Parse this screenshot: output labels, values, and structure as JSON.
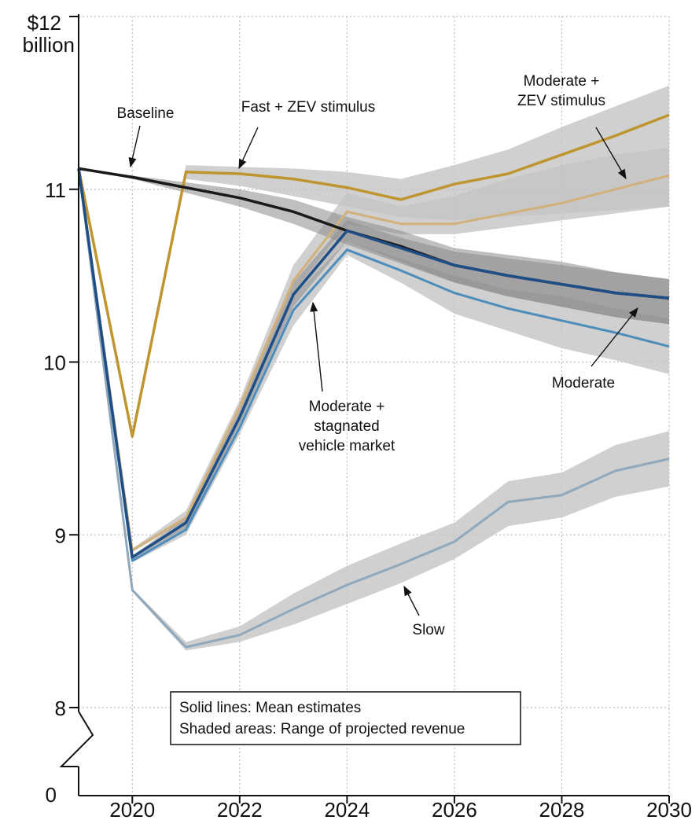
{
  "chart_data": {
    "type": "line",
    "ylabel_top": "$12",
    "ylabel_unit": "billion",
    "x": [
      2019,
      2020,
      2021,
      2022,
      2023,
      2024,
      2025,
      2026,
      2027,
      2028,
      2029,
      2030
    ],
    "xlim": [
      2019,
      2030
    ],
    "xticks": [
      "2020",
      "2022",
      "2024",
      "2026",
      "2028",
      "2030"
    ],
    "ylim": [
      8,
      12
    ],
    "yticks": [
      "8",
      "9",
      "10",
      "11",
      "$12"
    ],
    "axis_break_label": "0",
    "grid": true,
    "colors": {
      "baseline": "#1a1a1a",
      "fast_zev": "#bf9530",
      "moderate_zev": "#d9bc85",
      "moderate": "#1f4e87",
      "moderate_stagnated": "#d1b07a",
      "moderate_light": "#4d8dbb",
      "slow": "#8fa8bb",
      "band": "#c4c4c4",
      "band_dark": "#8a8a8a"
    },
    "series": [
      {
        "key": "slow",
        "values": [
          11.12,
          8.68,
          8.35,
          8.42,
          8.57,
          8.71,
          8.83,
          8.96,
          9.19,
          9.23,
          9.37,
          9.44
        ],
        "band_low": [
          11.12,
          8.67,
          8.33,
          8.38,
          8.48,
          8.6,
          8.72,
          8.86,
          9.05,
          9.1,
          9.22,
          9.28
        ],
        "band_high": [
          11.12,
          8.69,
          8.38,
          8.47,
          8.66,
          8.82,
          8.95,
          9.07,
          9.31,
          9.36,
          9.52,
          9.6
        ]
      },
      {
        "key": "moderate_light",
        "values": [
          11.12,
          8.85,
          9.03,
          9.62,
          10.3,
          10.65,
          10.53,
          10.4,
          10.31,
          10.24,
          10.17,
          10.09
        ],
        "band_low": [
          11.12,
          8.84,
          9.0,
          9.58,
          10.21,
          10.62,
          10.46,
          10.28,
          10.18,
          10.08,
          10.01,
          9.93
        ],
        "band_high": [
          11.12,
          8.86,
          9.06,
          9.66,
          10.38,
          10.7,
          10.6,
          10.5,
          10.42,
          10.38,
          10.31,
          10.25
        ]
      },
      {
        "key": "moderate_stagnated",
        "values": [
          11.12,
          8.91,
          9.1,
          9.74,
          10.47,
          10.87,
          10.8,
          10.8,
          10.86,
          10.92,
          11.0,
          11.08
        ],
        "band_low": [
          11.12,
          8.9,
          9.08,
          9.7,
          10.4,
          10.8,
          10.74,
          10.74,
          10.78,
          10.82,
          10.86,
          10.9
        ],
        "band_high": [
          11.12,
          8.92,
          9.14,
          9.78,
          10.56,
          10.98,
          10.9,
          10.96,
          11.06,
          11.14,
          11.2,
          11.24
        ]
      },
      {
        "key": "moderate",
        "values": [
          11.12,
          8.87,
          9.07,
          9.68,
          10.39,
          10.76,
          10.66,
          10.56,
          10.5,
          10.45,
          10.4,
          10.37
        ],
        "band_low": [
          11.12,
          8.86,
          9.04,
          9.64,
          10.32,
          10.7,
          10.58,
          10.46,
          10.38,
          10.32,
          10.26,
          10.22
        ],
        "band_high": [
          11.12,
          8.88,
          9.1,
          9.72,
          10.46,
          10.82,
          10.72,
          10.64,
          10.6,
          10.56,
          10.52,
          10.48
        ]
      },
      {
        "key": "baseline",
        "values": [
          11.12,
          11.07,
          11.01,
          10.95,
          10.87,
          10.76,
          10.67,
          10.56,
          10.5,
          10.45,
          10.4,
          10.37
        ],
        "band_low": [
          11.12,
          11.06,
          10.98,
          10.9,
          10.8,
          10.68,
          10.57,
          10.46,
          10.38,
          10.32,
          10.26,
          10.22
        ],
        "band_high": [
          11.12,
          11.08,
          11.04,
          11.0,
          10.94,
          10.84,
          10.76,
          10.66,
          10.62,
          10.58,
          10.52,
          10.48
        ]
      },
      {
        "key": "fast_zev",
        "values": [
          11.12,
          9.57,
          11.1,
          11.09,
          11.06,
          11.01,
          10.94,
          11.03,
          11.09,
          11.2,
          11.31,
          11.43
        ],
        "band_low": [
          11.12,
          9.56,
          11.06,
          11.02,
          10.96,
          10.9,
          10.84,
          10.82,
          10.84,
          10.86,
          10.88,
          10.9
        ],
        "band_high": [
          11.12,
          9.58,
          11.14,
          11.13,
          11.12,
          11.1,
          11.06,
          11.14,
          11.23,
          11.36,
          11.48,
          11.6
        ]
      }
    ],
    "annotations": [
      {
        "key": "baseline",
        "lines": [
          "Baseline"
        ]
      },
      {
        "key": "fast_zev",
        "lines": [
          "Fast + ZEV stimulus"
        ]
      },
      {
        "key": "moderate_zev",
        "lines": [
          "Moderate +",
          "ZEV stimulus"
        ]
      },
      {
        "key": "moderate_stagnated",
        "lines": [
          "Moderate +",
          "stagnated",
          "vehicle market"
        ]
      },
      {
        "key": "moderate",
        "lines": [
          "Moderate"
        ]
      },
      {
        "key": "slow",
        "lines": [
          "Slow"
        ]
      }
    ],
    "note_lines": [
      "Solid lines: Mean estimates",
      "Shaded areas: Range of projected revenue"
    ]
  }
}
